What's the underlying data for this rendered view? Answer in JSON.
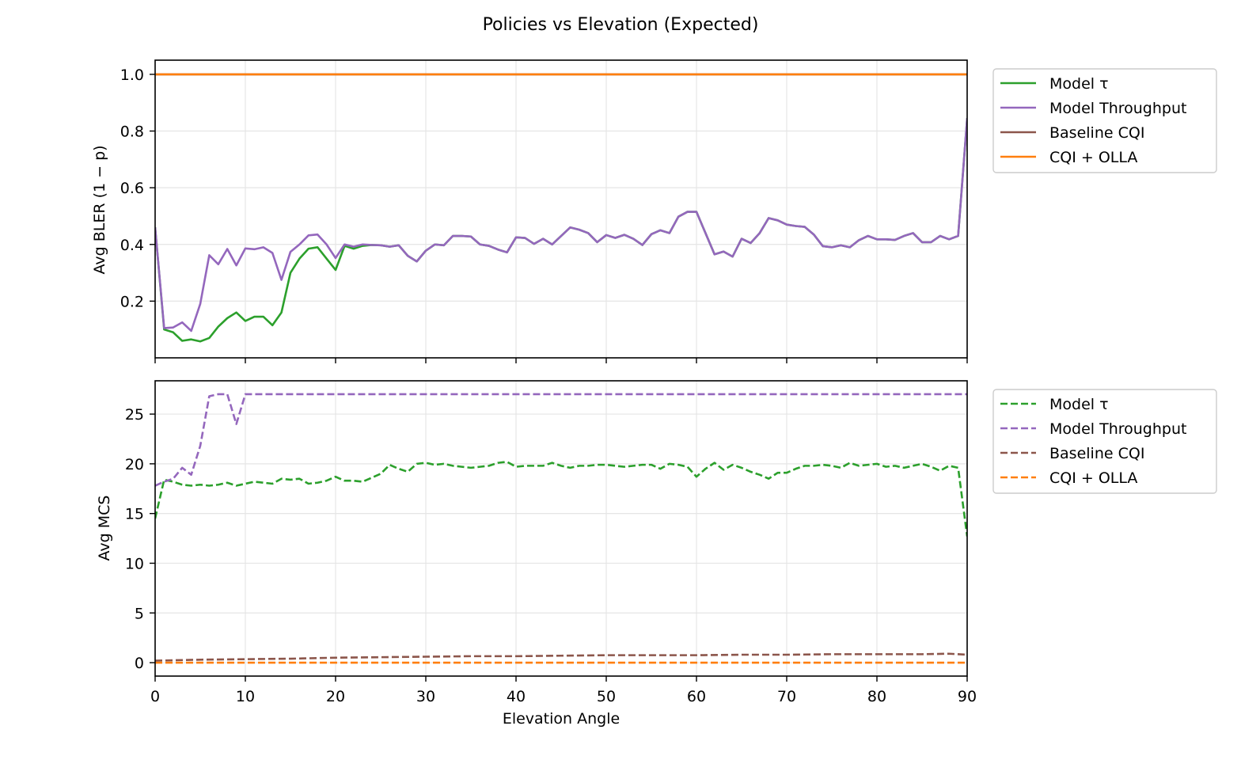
{
  "title": "Policies vs Elevation (Expected)",
  "colors": {
    "model_tau": "#2ca02c",
    "model_throughput": "#9467bd",
    "baseline_cqi": "#8c564b",
    "cqi_olla": "#ff7f0e",
    "grid": "#e5e5e5"
  },
  "chart_data": [
    {
      "type": "line",
      "ylabel": "Avg BLER (1 − p)",
      "xlabel": "",
      "xlim": [
        0,
        90
      ],
      "ylim": [
        0,
        1.05
      ],
      "yticks": [
        0.2,
        0.4,
        0.6,
        0.8,
        1.0
      ],
      "ytick_labels": [
        "0.2",
        "0.4",
        "0.6",
        "0.8",
        "1.0"
      ],
      "xticks": [
        0,
        10,
        20,
        30,
        40,
        50,
        60,
        70,
        80,
        90
      ],
      "grid": true,
      "legend_position": "outside-top-right",
      "series": [
        {
          "name": "Model τ",
          "color_key": "model_tau",
          "style": "solid",
          "x": [
            0,
            1,
            2,
            3,
            4,
            5,
            6,
            7,
            8,
            9,
            10,
            11,
            12,
            13,
            14,
            15,
            16,
            17,
            18,
            19,
            20,
            21,
            22,
            23,
            24,
            25,
            26,
            27,
            28,
            29,
            30,
            31,
            32,
            33,
            34,
            35,
            36,
            37,
            38,
            39,
            40,
            41,
            42,
            43,
            44,
            45,
            46,
            47,
            48,
            49,
            50,
            51,
            52,
            53,
            54,
            55,
            56,
            57,
            58,
            59,
            60,
            61,
            62,
            63,
            64,
            65,
            66,
            67,
            68,
            69,
            70,
            71,
            72,
            73,
            74,
            75,
            76,
            77,
            78,
            79,
            80,
            81,
            82,
            83,
            84,
            85,
            86,
            87,
            88,
            89,
            90
          ],
          "y": [
            0.46,
            0.1,
            0.09,
            0.06,
            0.065,
            0.058,
            0.07,
            0.11,
            0.14,
            0.16,
            0.13,
            0.145,
            0.145,
            0.115,
            0.16,
            0.3,
            0.35,
            0.385,
            0.39,
            0.35,
            0.31,
            0.395,
            0.385,
            0.395,
            0.398,
            0.397,
            0.392,
            0.397,
            0.36,
            0.34,
            0.378,
            0.4,
            0.397,
            0.43,
            0.43,
            0.428,
            0.4,
            0.395,
            0.382,
            0.372,
            0.425,
            0.423,
            0.402,
            0.42,
            0.4,
            0.43,
            0.46,
            0.452,
            0.44,
            0.408,
            0.433,
            0.423,
            0.434,
            0.42,
            0.398,
            0.436,
            0.45,
            0.44,
            0.498,
            0.515,
            0.515,
            0.44,
            0.365,
            0.375,
            0.357,
            0.42,
            0.405,
            0.44,
            0.493,
            0.485,
            0.47,
            0.465,
            0.462,
            0.435,
            0.394,
            0.39,
            0.397,
            0.39,
            0.415,
            0.43,
            0.418,
            0.418,
            0.416,
            0.43,
            0.44,
            0.408,
            0.408,
            0.43,
            0.418,
            0.43,
            0.845
          ]
        },
        {
          "name": "Model Throughput",
          "color_key": "model_throughput",
          "style": "solid",
          "x": [
            0,
            1,
            2,
            3,
            4,
            5,
            6,
            7,
            8,
            9,
            10,
            11,
            12,
            13,
            14,
            15,
            16,
            17,
            18,
            19,
            20,
            21,
            22,
            23,
            24,
            25,
            26,
            27,
            28,
            29,
            30,
            31,
            32,
            33,
            34,
            35,
            36,
            37,
            38,
            39,
            40,
            41,
            42,
            43,
            44,
            45,
            46,
            47,
            48,
            49,
            50,
            51,
            52,
            53,
            54,
            55,
            56,
            57,
            58,
            59,
            60,
            61,
            62,
            63,
            64,
            65,
            66,
            67,
            68,
            69,
            70,
            71,
            72,
            73,
            74,
            75,
            76,
            77,
            78,
            79,
            80,
            81,
            82,
            83,
            84,
            85,
            86,
            87,
            88,
            89,
            90
          ],
          "y": [
            0.46,
            0.105,
            0.107,
            0.125,
            0.095,
            0.19,
            0.362,
            0.33,
            0.384,
            0.326,
            0.386,
            0.383,
            0.39,
            0.37,
            0.275,
            0.374,
            0.4,
            0.432,
            0.435,
            0.4,
            0.352,
            0.4,
            0.392,
            0.4,
            0.398,
            0.397,
            0.392,
            0.397,
            0.36,
            0.34,
            0.378,
            0.4,
            0.397,
            0.43,
            0.43,
            0.428,
            0.4,
            0.395,
            0.382,
            0.372,
            0.425,
            0.423,
            0.402,
            0.42,
            0.4,
            0.43,
            0.46,
            0.452,
            0.44,
            0.408,
            0.433,
            0.423,
            0.434,
            0.42,
            0.398,
            0.436,
            0.45,
            0.44,
            0.498,
            0.515,
            0.515,
            0.44,
            0.365,
            0.375,
            0.357,
            0.42,
            0.405,
            0.44,
            0.493,
            0.485,
            0.47,
            0.465,
            0.462,
            0.435,
            0.394,
            0.39,
            0.397,
            0.39,
            0.415,
            0.43,
            0.418,
            0.418,
            0.416,
            0.43,
            0.44,
            0.408,
            0.408,
            0.43,
            0.418,
            0.43,
            0.845
          ]
        },
        {
          "name": "Baseline CQI",
          "color_key": "baseline_cqi",
          "style": "solid",
          "x": [
            0,
            90
          ],
          "y": [
            1.0,
            1.0
          ]
        },
        {
          "name": "CQI + OLLA",
          "color_key": "cqi_olla",
          "style": "solid",
          "x": [
            0,
            90
          ],
          "y": [
            1.0,
            1.0
          ]
        }
      ]
    },
    {
      "type": "line",
      "ylabel": "Avg MCS",
      "xlabel": "Elevation Angle",
      "xlim": [
        0,
        90
      ],
      "ylim": [
        -1.35,
        28.35
      ],
      "yticks": [
        0,
        5,
        10,
        15,
        20,
        25
      ],
      "ytick_labels": [
        "0",
        "5",
        "10",
        "15",
        "20",
        "25"
      ],
      "xticks": [
        0,
        10,
        20,
        30,
        40,
        50,
        60,
        70,
        80,
        90
      ],
      "xtick_labels": [
        "0",
        "10",
        "20",
        "30",
        "40",
        "50",
        "60",
        "70",
        "80",
        "90"
      ],
      "grid": true,
      "legend_position": "outside-top-right",
      "series": [
        {
          "name": "Model τ",
          "color_key": "model_tau",
          "style": "dashed",
          "x": [
            0,
            1,
            2,
            3,
            4,
            5,
            6,
            7,
            8,
            9,
            10,
            11,
            12,
            13,
            14,
            15,
            16,
            17,
            18,
            19,
            20,
            21,
            22,
            23,
            24,
            25,
            26,
            27,
            28,
            29,
            30,
            31,
            32,
            33,
            34,
            35,
            36,
            37,
            38,
            39,
            40,
            41,
            42,
            43,
            44,
            45,
            46,
            47,
            48,
            49,
            50,
            51,
            52,
            53,
            54,
            55,
            56,
            57,
            58,
            59,
            60,
            61,
            62,
            63,
            64,
            65,
            66,
            67,
            68,
            69,
            70,
            71,
            72,
            73,
            74,
            75,
            76,
            77,
            78,
            79,
            80,
            81,
            82,
            83,
            84,
            85,
            86,
            87,
            88,
            89,
            90
          ],
          "y": [
            14.5,
            18.4,
            18.2,
            17.9,
            17.8,
            17.9,
            17.8,
            17.9,
            18.1,
            17.8,
            18.0,
            18.2,
            18.1,
            18.0,
            18.5,
            18.4,
            18.5,
            18.0,
            18.1,
            18.3,
            18.7,
            18.3,
            18.3,
            18.2,
            18.6,
            19.0,
            19.9,
            19.5,
            19.2,
            20.0,
            20.1,
            19.9,
            20.0,
            19.8,
            19.7,
            19.6,
            19.7,
            19.8,
            20.1,
            20.2,
            19.7,
            19.8,
            19.8,
            19.8,
            20.1,
            19.8,
            19.6,
            19.8,
            19.8,
            19.9,
            19.9,
            19.8,
            19.7,
            19.8,
            19.9,
            19.9,
            19.5,
            20.0,
            19.9,
            19.7,
            18.7,
            19.5,
            20.1,
            19.4,
            19.9,
            19.6,
            19.2,
            18.9,
            18.5,
            19.1,
            19.1,
            19.5,
            19.8,
            19.8,
            19.9,
            19.8,
            19.6,
            20.1,
            19.8,
            19.9,
            20.0,
            19.7,
            19.8,
            19.6,
            19.8,
            20.0,
            19.7,
            19.3,
            19.8,
            19.6,
            12.7
          ]
        },
        {
          "name": "Model Throughput",
          "color_key": "model_throughput",
          "style": "dashed",
          "x": [
            0,
            1,
            2,
            3,
            4,
            5,
            6,
            7,
            8,
            9,
            10,
            11,
            12,
            13,
            14,
            15,
            16,
            17,
            18,
            19,
            20,
            21,
            22,
            23,
            24,
            25,
            26,
            27,
            28,
            29,
            30,
            31,
            32,
            33,
            34,
            35,
            36,
            37,
            38,
            39,
            40,
            41,
            42,
            43,
            44,
            45,
            46,
            47,
            48,
            49,
            50,
            51,
            52,
            53,
            54,
            55,
            56,
            57,
            58,
            59,
            60,
            61,
            62,
            63,
            64,
            65,
            66,
            67,
            68,
            69,
            70,
            71,
            72,
            73,
            74,
            75,
            76,
            77,
            78,
            79,
            80,
            81,
            82,
            83,
            84,
            85,
            86,
            87,
            88,
            89,
            90
          ],
          "y": [
            17.8,
            18.2,
            18.5,
            19.6,
            18.9,
            21.8,
            26.8,
            27.0,
            27.0,
            24.0,
            27.0,
            27.0,
            27.0,
            27.0,
            27.0,
            27.0,
            27.0,
            27.0,
            27.0,
            27.0,
            27.0,
            27.0,
            27.0,
            27.0,
            27.0,
            27.0,
            27.0,
            27.0,
            27.0,
            27.0,
            27.0,
            27.0,
            27.0,
            27.0,
            27.0,
            27.0,
            27.0,
            27.0,
            27.0,
            27.0,
            27.0,
            27.0,
            27.0,
            27.0,
            27.0,
            27.0,
            27.0,
            27.0,
            27.0,
            27.0,
            27.0,
            27.0,
            27.0,
            27.0,
            27.0,
            27.0,
            27.0,
            27.0,
            27.0,
            27.0,
            27.0,
            27.0,
            27.0,
            27.0,
            27.0,
            27.0,
            27.0,
            27.0,
            27.0,
            27.0,
            27.0,
            27.0,
            27.0,
            27.0,
            27.0,
            27.0,
            27.0,
            27.0,
            27.0,
            27.0,
            27.0,
            27.0,
            27.0,
            27.0,
            27.0,
            27.0,
            27.0,
            27.0,
            27.0,
            27.0,
            27.0
          ]
        },
        {
          "name": "Baseline CQI",
          "color_key": "baseline_cqi",
          "style": "dashed",
          "x": [
            0,
            5,
            10,
            15,
            20,
            25,
            30,
            35,
            40,
            45,
            50,
            55,
            60,
            65,
            70,
            75,
            80,
            85,
            88,
            90
          ],
          "y": [
            0.2,
            0.3,
            0.35,
            0.4,
            0.5,
            0.55,
            0.6,
            0.65,
            0.65,
            0.7,
            0.75,
            0.75,
            0.75,
            0.8,
            0.8,
            0.85,
            0.85,
            0.85,
            0.9,
            0.8
          ]
        },
        {
          "name": "CQI + OLLA",
          "color_key": "cqi_olla",
          "style": "dashed",
          "x": [
            0,
            90
          ],
          "y": [
            0.0,
            0.0
          ]
        }
      ]
    }
  ]
}
